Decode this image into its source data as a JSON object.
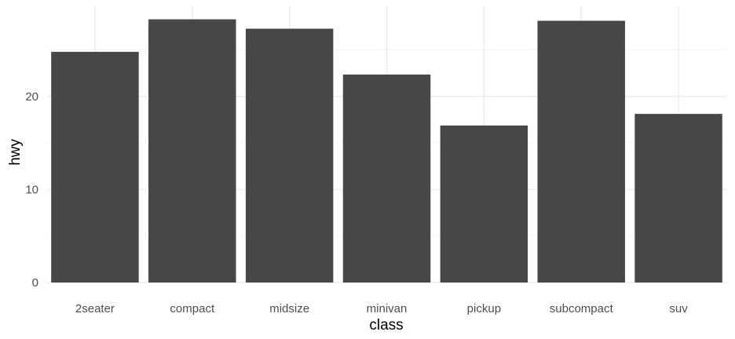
{
  "chart_data": {
    "type": "bar",
    "categories": [
      "2seater",
      "compact",
      "midsize",
      "minivan",
      "pickup",
      "subcompact",
      "suv"
    ],
    "values": [
      24.8,
      28.3,
      27.29,
      22.36,
      16.88,
      28.14,
      18.13
    ],
    "xlabel": "class",
    "ylabel": "hwy",
    "ylim": [
      0,
      29.7
    ],
    "yticks": [
      0,
      10,
      20
    ],
    "ytick_labels": [
      "0",
      "10",
      "20"
    ],
    "bar_color": "#474747",
    "grid": true,
    "legend": "none",
    "theme": "minimal"
  }
}
